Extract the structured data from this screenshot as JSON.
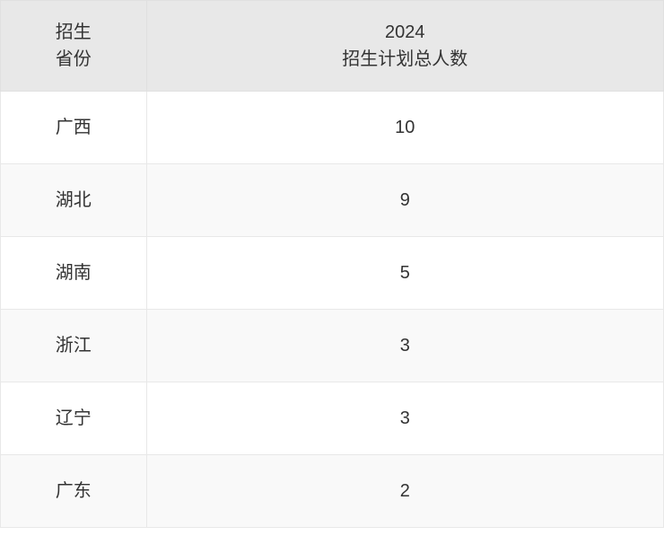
{
  "table": {
    "columns": [
      {
        "line1": "招生",
        "line2": "省份"
      },
      {
        "line1": "2024",
        "line2": "招生计划总人数"
      }
    ],
    "rows": [
      {
        "province": "广西",
        "count": "10"
      },
      {
        "province": "湖北",
        "count": "9"
      },
      {
        "province": "湖南",
        "count": "5"
      },
      {
        "province": "浙江",
        "count": "3"
      },
      {
        "province": "辽宁",
        "count": "3"
      },
      {
        "province": "广东",
        "count": "2"
      }
    ],
    "styling": {
      "header_bg": "#e8e8e8",
      "row_odd_bg": "#ffffff",
      "row_even_bg": "#f9f9f9",
      "border_color": "#e8e8e8",
      "text_color": "#333333",
      "font_size": 20,
      "col_widths": [
        "22%",
        "78%"
      ]
    }
  }
}
